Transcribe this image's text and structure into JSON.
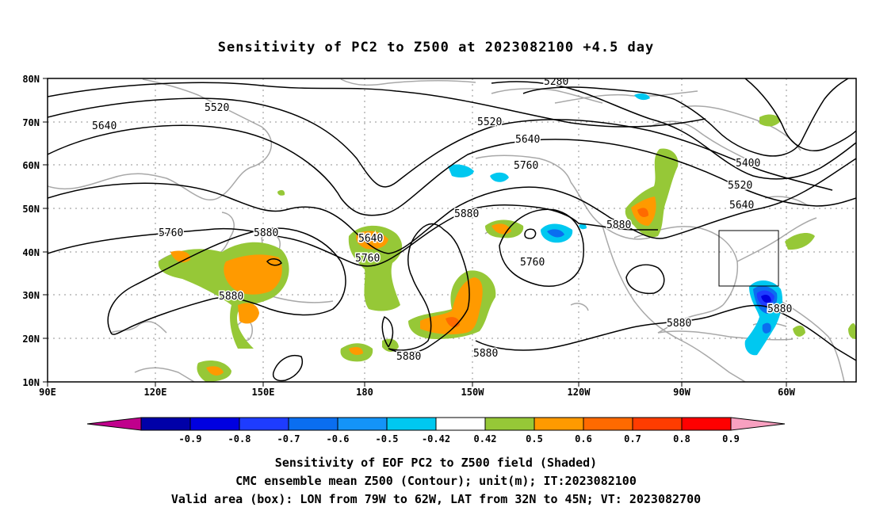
{
  "title": "Sensitivity of PC2 to Z500 at 2023082100 +4.5 day",
  "lat_labels": [
    "80N",
    "70N",
    "60N",
    "50N",
    "40N",
    "30N",
    "20N",
    "10N"
  ],
  "lon_labels": [
    "90E",
    "120E",
    "150E",
    "180",
    "150W",
    "120W",
    "90W",
    "60W"
  ],
  "contour_labels": [
    "5280",
    "5520",
    "5520",
    "5400",
    "5520",
    "5640",
    "5640",
    "5640",
    "5640",
    "5760",
    "5760",
    "5760",
    "5760",
    "5880",
    "5880",
    "5880",
    "5880",
    "5880",
    "5880",
    "5880",
    "5880"
  ],
  "colorbar": {
    "labels": [
      "-0.9",
      "-0.8",
      "-0.7",
      "-0.6",
      "-0.5",
      "-0.42",
      "0.42",
      "0.5",
      "0.6",
      "0.7",
      "0.8",
      "0.9"
    ],
    "colors": [
      "#c0008c",
      "#0000a8",
      "#0000e0",
      "#1e3cff",
      "#0a6ef0",
      "#1494f8",
      "#00c8f0",
      "#ffffff",
      "#96c837",
      "#ff9a00",
      "#ff6a00",
      "#ff3c00",
      "#ff0000",
      "#f8a0c0"
    ]
  },
  "captions": {
    "line1": "Sensitivity of EOF PC2 to Z500 field (Shaded)",
    "line2": "CMC ensemble mean Z500 (Contour); unit(m); IT:2023082100",
    "line3": "Valid area (box): LON from 79W to 62W, LAT from 32N to 45N; VT: 2023082700"
  }
}
